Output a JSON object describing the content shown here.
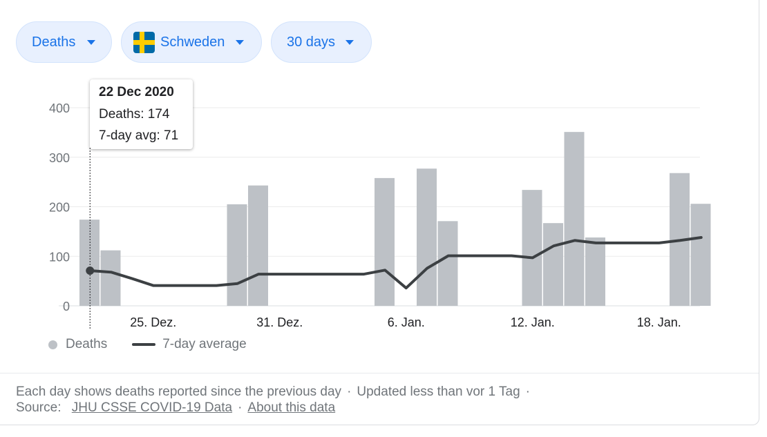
{
  "filters": {
    "metric": "Deaths",
    "country": "Schweden",
    "range": "30 days",
    "colors": {
      "flag_blue": "#006aa7",
      "flag_yellow": "#fecc00"
    }
  },
  "tooltip": {
    "date": "22 Dec 2020",
    "deaths": "Deaths: 174",
    "avg": "7-day avg: 71"
  },
  "legend": {
    "bars": "Deaths",
    "line": "7-day average"
  },
  "footer": {
    "note": "Each day shows deaths reported since the previous day",
    "updated": "Updated less than vor 1 Tag",
    "source_label": "Source:",
    "source_link": "JHU CSSE COVID-19 Data",
    "about_link": "About this data"
  },
  "chart_data": {
    "type": "bar",
    "title": "",
    "xlabel": "",
    "ylabel": "",
    "ylim": [
      0,
      400
    ],
    "yticks": [
      0,
      100,
      200,
      300,
      400
    ],
    "grid": true,
    "categories": [
      "22 Dec",
      "23 Dec",
      "24 Dec",
      "25 Dec",
      "26 Dec",
      "27 Dec",
      "28 Dec",
      "29 Dec",
      "30 Dec",
      "31 Dec",
      "1 Jan",
      "2 Jan",
      "3 Jan",
      "4 Jan",
      "5 Jan",
      "6 Jan",
      "7 Jan",
      "8 Jan",
      "9 Jan",
      "10 Jan",
      "11 Jan",
      "12 Jan",
      "13 Jan",
      "14 Jan",
      "15 Jan",
      "16 Jan",
      "17 Jan",
      "18 Jan",
      "19 Jan",
      "20 Jan"
    ],
    "xticks": [
      {
        "index": 3,
        "label": "25. Dez."
      },
      {
        "index": 9,
        "label": "31. Dez."
      },
      {
        "index": 15,
        "label": "6. Jan."
      },
      {
        "index": 21,
        "label": "12. Jan."
      },
      {
        "index": 27,
        "label": "18. Jan."
      }
    ],
    "series": [
      {
        "name": "Deaths",
        "type": "bar",
        "color": "#bdc1c6",
        "values": [
          174,
          112,
          0,
          0,
          0,
          0,
          0,
          205,
          243,
          0,
          0,
          0,
          0,
          0,
          258,
          0,
          277,
          171,
          0,
          0,
          0,
          234,
          167,
          351,
          138,
          0,
          0,
          0,
          268,
          206
        ]
      },
      {
        "name": "7-day average",
        "type": "line",
        "color": "#3c4043",
        "values": [
          71,
          68,
          55,
          41,
          41,
          41,
          41,
          45,
          64,
          64,
          64,
          64,
          64,
          64,
          72,
          36,
          76,
          101,
          101,
          101,
          101,
          97,
          121,
          132,
          127,
          127,
          127,
          127,
          132,
          138
        ]
      }
    ],
    "highlight_index": 0
  }
}
